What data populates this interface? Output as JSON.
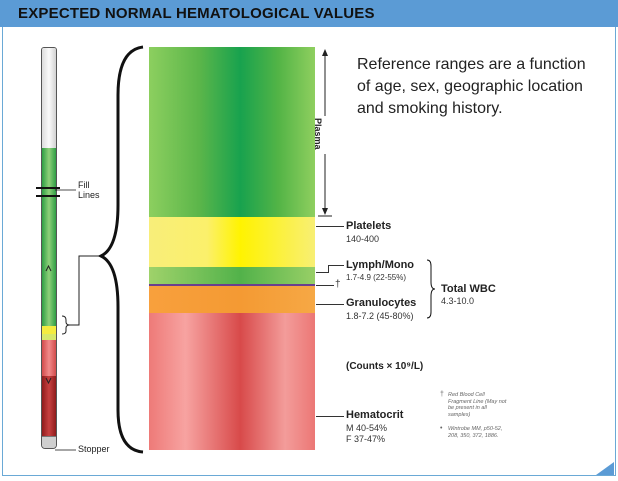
{
  "header": {
    "title": "EXPECTED NORMAL HEMATOLOGICAL VALUES"
  },
  "tube": {
    "fill_lines_label": "Fill\nLines",
    "stopper_label": "Stopper"
  },
  "note": "Reference ranges are a function of age, sex, geographic location and smoking history.",
  "layers": {
    "plasma": {
      "label": "Plasma"
    },
    "platelets": {
      "name": "Platelets",
      "value": "140-400"
    },
    "lymph": {
      "name": "Lymph/Mono",
      "value": "1.7-4.9 (22-55%)"
    },
    "dagger": "†",
    "granulocytes": {
      "name": "Granulocytes",
      "value": "1.8-7.2 (45-80%)"
    },
    "total_wbc": {
      "name": "Total WBC",
      "value": "4.3-10.0"
    },
    "counts": "(Counts × 10⁹/L)",
    "hematocrit": {
      "name": "Hematocrit",
      "male": "M  40-54%",
      "female": "F  37-47%"
    }
  },
  "footnotes": {
    "dagger_mark": "†",
    "dagger_text": "Red Blood Cell Fragment Line (May not be present in all samples)",
    "bullet_mark": "•",
    "bullet_text": "Wintrobe MM, p50-52, 208, 350, 372, 1886."
  },
  "colors": {
    "header": "#5b9bd5",
    "plasma": "#18a24e",
    "platelets": "#fff300",
    "granulocytes": "#f49a33",
    "rbc": "#d84a4a"
  }
}
